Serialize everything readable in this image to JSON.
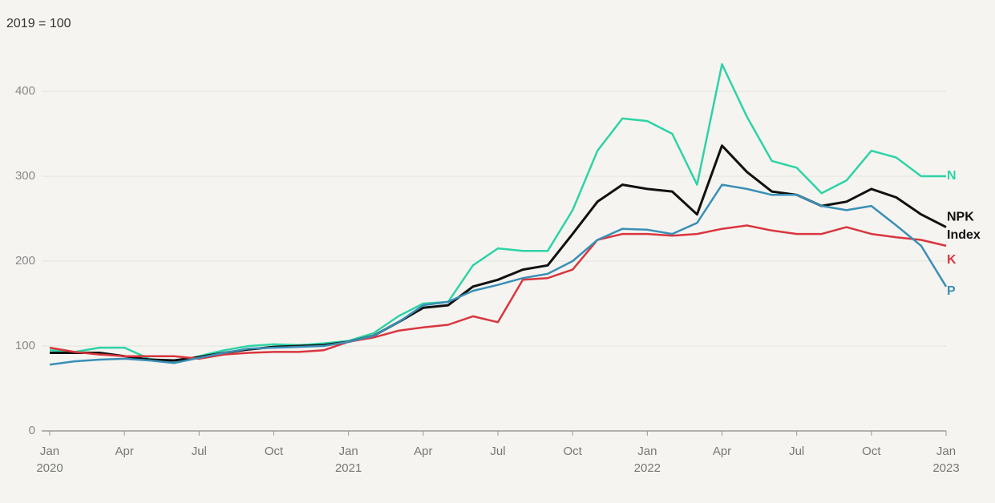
{
  "chart_data": {
    "type": "line",
    "subtitle": "2019 = 100",
    "x": [
      "2020-01",
      "2020-02",
      "2020-03",
      "2020-04",
      "2020-05",
      "2020-06",
      "2020-07",
      "2020-08",
      "2020-09",
      "2020-10",
      "2020-11",
      "2020-12",
      "2021-01",
      "2021-02",
      "2021-03",
      "2021-04",
      "2021-05",
      "2021-06",
      "2021-07",
      "2021-08",
      "2021-09",
      "2021-10",
      "2021-11",
      "2021-12",
      "2022-01",
      "2022-02",
      "2022-03",
      "2022-04",
      "2022-05",
      "2022-06",
      "2022-07",
      "2022-08",
      "2022-09",
      "2022-10",
      "2022-11",
      "2022-12",
      "2023-01"
    ],
    "series": [
      {
        "name": "N",
        "color": "#2ed3a5",
        "values": [
          95,
          93,
          98,
          98,
          85,
          80,
          88,
          95,
          100,
          102,
          101,
          103,
          106,
          115,
          135,
          150,
          152,
          195,
          215,
          212,
          212,
          260,
          330,
          368,
          365,
          350,
          290,
          432,
          370,
          318,
          310,
          280,
          295,
          330,
          322,
          300,
          300
        ]
      },
      {
        "name": "NPK Index",
        "color": "#111111",
        "values": [
          92,
          92,
          92,
          88,
          84,
          83,
          87,
          92,
          96,
          99,
          100,
          101,
          105,
          112,
          128,
          145,
          148,
          170,
          178,
          190,
          195,
          232,
          270,
          290,
          285,
          282,
          255,
          336,
          305,
          282,
          278,
          265,
          270,
          285,
          275,
          255,
          240
        ]
      },
      {
        "name": "K",
        "color": "#d9363e",
        "values": [
          98,
          93,
          90,
          88,
          88,
          88,
          85,
          90,
          92,
          93,
          93,
          95,
          105,
          110,
          118,
          122,
          125,
          135,
          128,
          178,
          180,
          190,
          225,
          232,
          232,
          230,
          232,
          238,
          242,
          236,
          232,
          232,
          240,
          232,
          228,
          225,
          218
        ]
      },
      {
        "name": "P",
        "color": "#3a8fb7",
        "values": [
          78,
          82,
          84,
          85,
          83,
          80,
          86,
          92,
          97,
          98,
          99,
          100,
          105,
          112,
          128,
          148,
          152,
          165,
          172,
          180,
          185,
          200,
          225,
          238,
          237,
          232,
          245,
          290,
          285,
          278,
          278,
          265,
          260,
          265,
          242,
          218,
          170
        ]
      }
    ],
    "ylim": [
      0,
      450
    ],
    "yticks": [
      0,
      100,
      200,
      300,
      400
    ],
    "xticks": [
      {
        "value": "2020-01",
        "label": "Jan 2020"
      },
      {
        "value": "2020-04",
        "label": "Apr"
      },
      {
        "value": "2020-07",
        "label": "Jul"
      },
      {
        "value": "2020-10",
        "label": "Oct"
      },
      {
        "value": "2021-01",
        "label": "Jan 2021"
      },
      {
        "value": "2021-04",
        "label": "Apr"
      },
      {
        "value": "2021-07",
        "label": "Jul"
      },
      {
        "value": "2021-10",
        "label": "Oct"
      },
      {
        "value": "2022-01",
        "label": "Jan 2022"
      },
      {
        "value": "2022-04",
        "label": "Apr"
      },
      {
        "value": "2022-07",
        "label": "Jul"
      },
      {
        "value": "2022-10",
        "label": "Oct"
      },
      {
        "value": "2023-01",
        "label": "Jan 2023"
      }
    ],
    "grid": true
  }
}
